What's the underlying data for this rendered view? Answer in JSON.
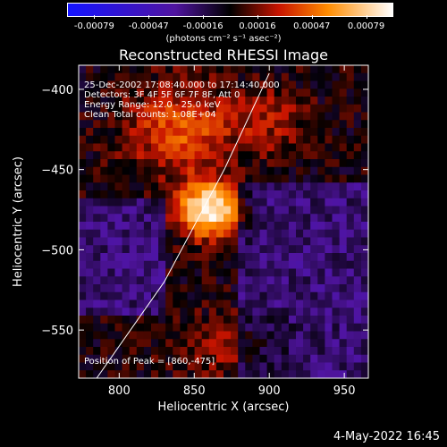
{
  "header": {
    "title": "Reconstructed RHESSI Image",
    "colorbar_units": "(photons cm⁻² s⁻¹ asec⁻²)",
    "colorbar_ticks": [
      "-0.00079",
      "-0.00047",
      "-0.00016",
      "0.00016",
      "0.00047",
      "0.00079"
    ]
  },
  "chart_data": {
    "type": "heatmap",
    "title": "Reconstructed RHESSI Image",
    "xlabel": "Heliocentric X (arcsec)",
    "ylabel": "Heliocentric Y (arcsec)",
    "xlim": [
      773,
      966
    ],
    "ylim": [
      -580,
      -385
    ],
    "x_ticks": [
      800,
      850,
      900,
      950
    ],
    "y_ticks": [
      -400,
      -450,
      -500,
      -550
    ],
    "x_tick_labels": [
      "800",
      "850",
      "900",
      "950"
    ],
    "y_tick_labels": [
      "−400",
      "−450",
      "−500",
      "−550"
    ],
    "colorbar_range": [
      -0.00079,
      0.00079
    ],
    "peak": [
      860,
      -475
    ],
    "annotations": [
      "25-Dec-2002 17:08:40.000 to 17:14:40.000",
      "Detectors: 3F 4F 5F 6F 7F 8F, Att 0",
      "Energy Range: 12.0 - 25.0 keV",
      "Clean     Total counts: 1.08E+04"
    ],
    "peak_label": "Position of Peak = [860,-475]",
    "limb_curve": [
      [
        785,
        -580
      ],
      [
        830,
        -520
      ],
      [
        870,
        -450
      ],
      [
        900,
        -390
      ]
    ]
  },
  "footer": {
    "date": "4-May-2022 16:45"
  }
}
